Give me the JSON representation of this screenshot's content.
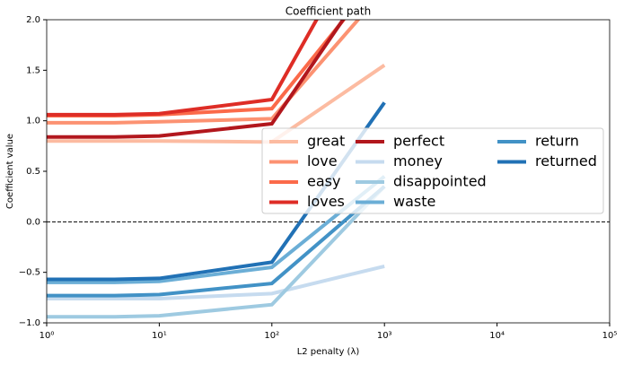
{
  "chart_data": {
    "type": "line",
    "title": "Coefficient path",
    "x_label": "L2 penalty (λ)",
    "y_label": "Coefficient value",
    "log_x": true,
    "x": [
      1,
      4,
      10,
      100,
      1000
    ],
    "xlim": [
      1,
      100000
    ],
    "xticks": [
      {
        "value": 1,
        "label": "10⁰"
      },
      {
        "value": 10,
        "label": "10¹"
      },
      {
        "value": 100,
        "label": "10²"
      },
      {
        "value": 1000,
        "label": "10³"
      },
      {
        "value": 10000,
        "label": "10⁴"
      },
      {
        "value": 100000,
        "label": "10⁵"
      }
    ],
    "ylim": [
      -1,
      2
    ],
    "yticks": [
      {
        "value": -1,
        "label": "−1.0"
      },
      {
        "value": -0.5,
        "label": "−0.5"
      },
      {
        "value": 0,
        "label": "0.0"
      },
      {
        "value": 0.5,
        "label": "0.5"
      },
      {
        "value": 1,
        "label": "1.0"
      },
      {
        "value": 1.5,
        "label": "1.5"
      },
      {
        "value": 2,
        "label": "2.0"
      }
    ],
    "series": [
      {
        "name": "great",
        "color": "#fcbba1",
        "values": [
          0.8,
          0.8,
          0.8,
          0.79,
          1.55
        ]
      },
      {
        "name": "love",
        "color": "#fc9272",
        "values": [
          0.98,
          0.98,
          0.99,
          1.02,
          2.3
        ]
      },
      {
        "name": "easy",
        "color": "#fb6a4a",
        "values": [
          1.05,
          1.05,
          1.06,
          1.12,
          2.5
        ]
      },
      {
        "name": "loves",
        "color": "#de2d26",
        "values": [
          1.06,
          1.06,
          1.07,
          1.21,
          3.2
        ]
      },
      {
        "name": "perfect",
        "color": "#b2171d",
        "values": [
          0.84,
          0.84,
          0.85,
          0.97,
          2.6
        ]
      },
      {
        "name": "money",
        "color": "#c6dbef",
        "values": [
          -0.76,
          -0.76,
          -0.76,
          -0.71,
          -0.44
        ]
      },
      {
        "name": "disappointed",
        "color": "#9ecae1",
        "values": [
          -0.94,
          -0.94,
          -0.93,
          -0.82,
          0.35
        ]
      },
      {
        "name": "waste",
        "color": "#6baed6",
        "values": [
          -0.6,
          -0.6,
          -0.59,
          -0.45,
          0.45
        ]
      },
      {
        "name": "return",
        "color": "#4292c6",
        "values": [
          -0.73,
          -0.73,
          -0.72,
          -0.61,
          0.35
        ]
      },
      {
        "name": "returned",
        "color": "#2171b5",
        "values": [
          -0.57,
          -0.57,
          -0.56,
          -0.4,
          1.18
        ]
      }
    ]
  }
}
